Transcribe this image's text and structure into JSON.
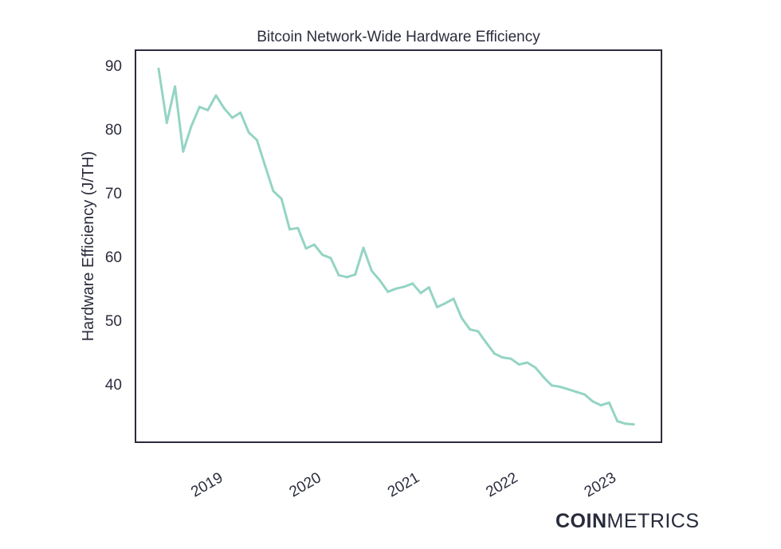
{
  "chart_data": {
    "type": "line",
    "title": "Bitcoin Network-Wide Hardware Efficiency",
    "xlabel": "",
    "ylabel": "Hardware Efficiency (J/TH)",
    "ylim": [
      30.9,
      92.4
    ],
    "xlim": [
      2018.15,
      2023.5
    ],
    "yticks": [
      40,
      50,
      60,
      70,
      80,
      90
    ],
    "xticks": [
      2019,
      2020,
      2021,
      2022,
      2023
    ],
    "xtick_labels": [
      "2019",
      "2020",
      "2021",
      "2022",
      "2023"
    ],
    "grid": false,
    "color": "#94d4c4",
    "x_start": 2018.385,
    "x_step_years": 0.08333,
    "series": [
      {
        "name": "Hardware Efficiency",
        "values": [
          89.5,
          81,
          86.7,
          76.5,
          80.5,
          83.5,
          83,
          85.3,
          83.3,
          81.8,
          82.6,
          79.5,
          78.3,
          74.3,
          70.3,
          69.1,
          64.3,
          64.5,
          61.3,
          61.9,
          60.3,
          59.8,
          57.1,
          56.8,
          57.2,
          61.4,
          57.8,
          56.3,
          54.5,
          55,
          55.3,
          55.8,
          54.3,
          55.2,
          52.1,
          52.7,
          53.4,
          50.4,
          48.6,
          48.3,
          46.5,
          44.8,
          44.2,
          44,
          43.1,
          43.4,
          42.6,
          41.1,
          39.8,
          39.6,
          39.2,
          38.8,
          38.4,
          37.3,
          36.7,
          37.1,
          34.2,
          33.8,
          33.7
        ]
      }
    ]
  },
  "branding": {
    "logo_bold": "COIN",
    "logo_light": "METRICS"
  }
}
